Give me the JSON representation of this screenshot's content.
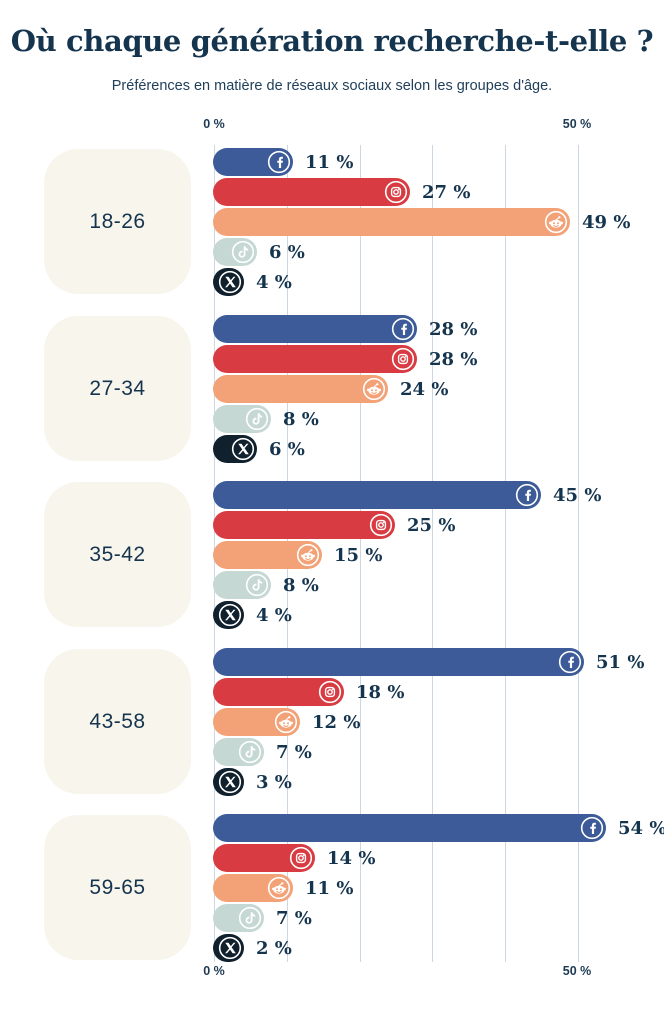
{
  "header": {
    "title": "Où chaque génération recherche-t-elle ?",
    "subtitle": "Préférences en matière de réseaux sociaux selon les groupes d'âge."
  },
  "chart_data": {
    "type": "bar",
    "orientation": "horizontal",
    "title": "Où chaque génération recherche-t-elle ?",
    "subtitle": "Préférences en matière de réseaux sociaux selon les groupes d'âge.",
    "xlabel": "",
    "ylabel": "",
    "xlim": [
      0,
      50
    ],
    "grid": true,
    "gridline_step_percent": 10,
    "legend": "none",
    "value_suffix": " %",
    "axis_ticks_top": [
      "0 %",
      "50 %"
    ],
    "axis_ticks_bottom": [
      "0 %",
      "50 %"
    ],
    "categories": [
      "18-26",
      "27-34",
      "35-42",
      "43-58",
      "59-65"
    ],
    "series": [
      {
        "name": "Facebook",
        "icon": "facebook-icon",
        "color": "#3d5b99",
        "values": [
          11,
          28,
          45,
          51,
          54
        ]
      },
      {
        "name": "Instagram",
        "icon": "instagram-icon",
        "color": "#d83c42",
        "values": [
          27,
          28,
          25,
          18,
          14
        ]
      },
      {
        "name": "Reddit",
        "icon": "reddit-icon",
        "color": "#f3a277",
        "values": [
          49,
          24,
          15,
          12,
          11
        ]
      },
      {
        "name": "TikTok",
        "icon": "tiktok-icon",
        "color": "#c6d8d4",
        "values": [
          6,
          8,
          8,
          7,
          7
        ]
      },
      {
        "name": "X",
        "icon": "x-icon",
        "color": "#10202d",
        "values": [
          4,
          6,
          4,
          3,
          2
        ]
      }
    ]
  },
  "theme": {
    "background": "#ffffff",
    "card_background": "#f8f5ec",
    "text_color": "#15344e",
    "grid_color": "#ccd7e2"
  }
}
